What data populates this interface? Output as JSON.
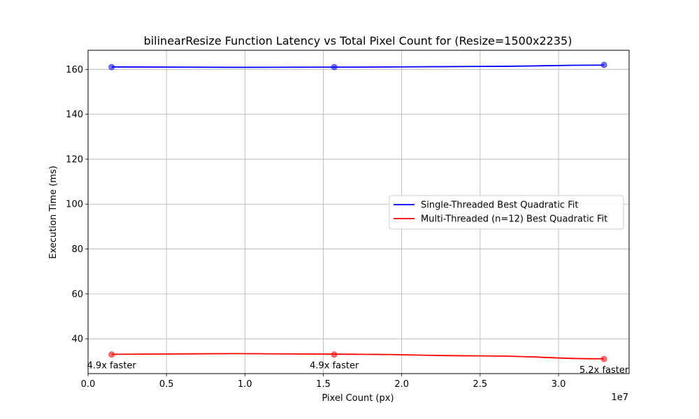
{
  "chart_data": {
    "type": "line",
    "title": "bilinearResize Function Latency vs Total Pixel Count for (Resize=1500x2235)",
    "xlabel": "Pixel Count (px)",
    "ylabel": "Execution Time (ms)",
    "x_offset_label": "1e7",
    "xlim": [
      0,
      3.45
    ],
    "ylim": [
      24.5,
      168.5
    ],
    "xticks": [
      0.0,
      0.5,
      1.0,
      1.5,
      2.0,
      2.5,
      3.0
    ],
    "xtick_labels": [
      "0.0",
      "0.5",
      "1.0",
      "1.5",
      "2.0",
      "2.5",
      "3.0"
    ],
    "yticks": [
      40,
      60,
      80,
      100,
      120,
      140,
      160
    ],
    "ytick_labels": [
      "40",
      "60",
      "80",
      "100",
      "120",
      "140",
      "160"
    ],
    "grid": true,
    "legend_position": "center-right",
    "series": [
      {
        "name": "Single-Threaded Best Quadratic Fit",
        "color": "#0000ff",
        "x": [
          0.15,
          1.57,
          3.29
        ],
        "y": [
          161,
          161,
          162
        ],
        "fit": [
          161.1,
          160.9,
          161.0,
          161.3,
          161.9
        ]
      },
      {
        "name": "Multi-Threaded (n=12) Best Quadratic Fit",
        "color": "#ff0000",
        "x": [
          0.15,
          1.57,
          3.29
        ],
        "y": [
          33,
          33,
          31
        ],
        "fit": [
          33.1,
          33.4,
          33.1,
          32.4,
          31.1
        ]
      }
    ],
    "annotations": [
      {
        "text": "4.9x faster",
        "x": 0.15,
        "y": 33
      },
      {
        "text": "4.9x faster",
        "x": 1.57,
        "y": 33
      },
      {
        "text": "5.2x faster",
        "x": 3.29,
        "y": 31
      }
    ]
  }
}
